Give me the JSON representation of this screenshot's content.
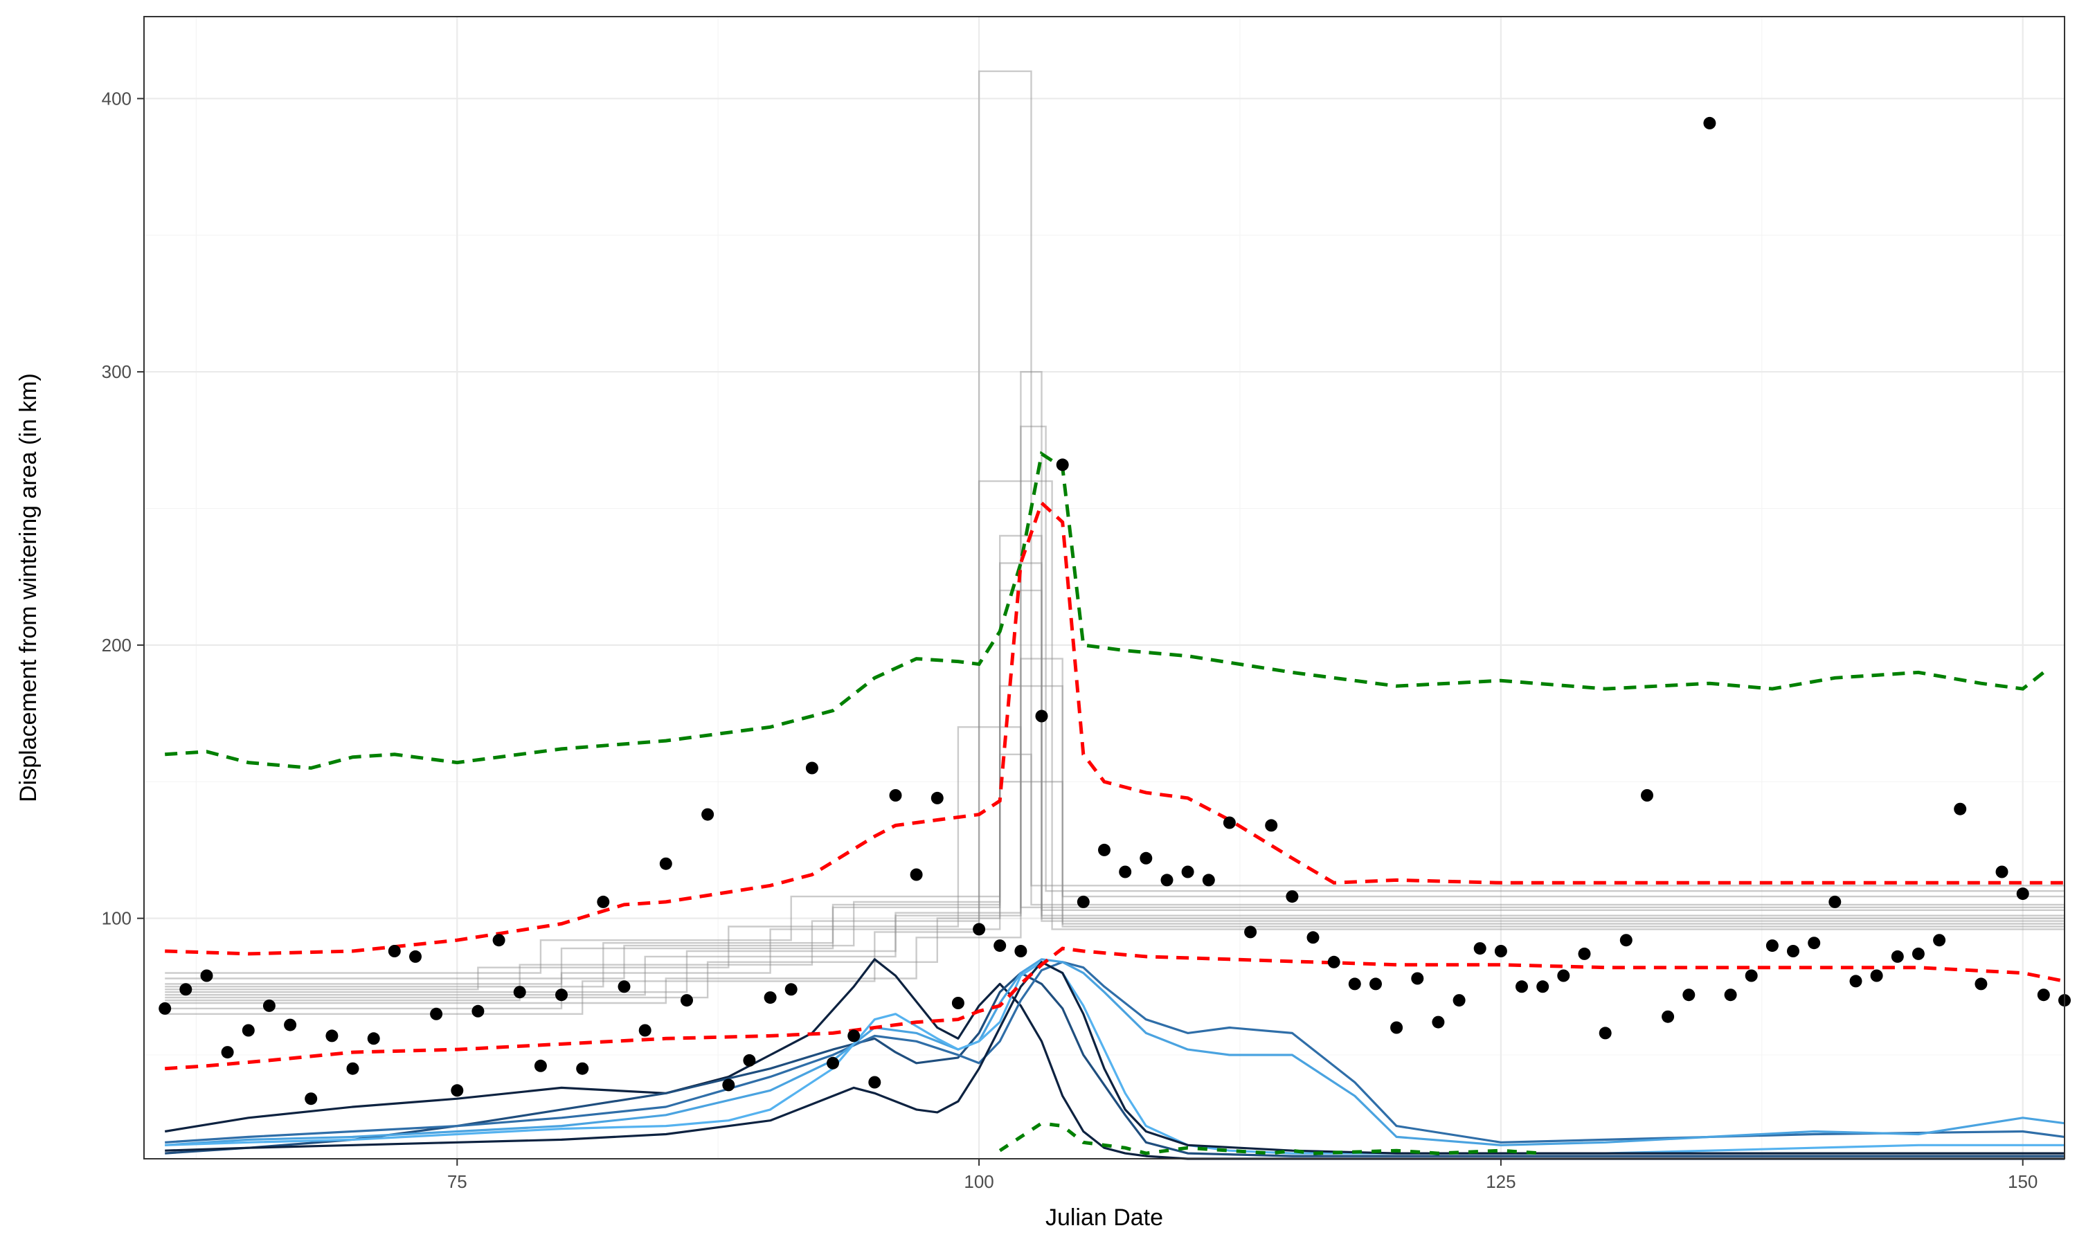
{
  "chart_data": {
    "type": "scatter",
    "xlabel": "Julian Date",
    "ylabel": "Displacement from wintering area (in km)",
    "xlim": [
      60,
      152
    ],
    "ylim": [
      12,
      430
    ],
    "x_ticks": [
      75,
      100,
      125,
      150
    ],
    "y_ticks": [
      100,
      200,
      300,
      400
    ],
    "x_tick_labels": [
      "75",
      "100",
      "125",
      "150"
    ],
    "y_tick_labels": [
      "100",
      "200",
      "300",
      "400"
    ],
    "grid": true,
    "legend": "none",
    "colors": {
      "points": "#000000",
      "upper_band": "#008000",
      "quantile_band": "#ff0000",
      "step_lines": "#8c8c8c",
      "density_curves": [
        "#0d2240",
        "#1f4e7e",
        "#2f6ea8",
        "#4aa3e0",
        "#55b2ef"
      ]
    },
    "points": [
      [
        61,
        67
      ],
      [
        62,
        74
      ],
      [
        63,
        79
      ],
      [
        64,
        51
      ],
      [
        65,
        59
      ],
      [
        66,
        68
      ],
      [
        67,
        61
      ],
      [
        68,
        34
      ],
      [
        69,
        57
      ],
      [
        70,
        45
      ],
      [
        71,
        56
      ],
      [
        72,
        88
      ],
      [
        73,
        86
      ],
      [
        74,
        65
      ],
      [
        75,
        37
      ],
      [
        76,
        66
      ],
      [
        77,
        92
      ],
      [
        78,
        73
      ],
      [
        79,
        46
      ],
      [
        80,
        72
      ],
      [
        81,
        45
      ],
      [
        82,
        106
      ],
      [
        83,
        75
      ],
      [
        84,
        59
      ],
      [
        85,
        120
      ],
      [
        86,
        70
      ],
      [
        87,
        138
      ],
      [
        88,
        39
      ],
      [
        89,
        48
      ],
      [
        90,
        71
      ],
      [
        91,
        74
      ],
      [
        92,
        155
      ],
      [
        93,
        47
      ],
      [
        94,
        57
      ],
      [
        95,
        40
      ],
      [
        96,
        145
      ],
      [
        97,
        116
      ],
      [
        98,
        144
      ],
      [
        99,
        69
      ],
      [
        100,
        96
      ],
      [
        101,
        90
      ],
      [
        102,
        88
      ],
      [
        103,
        174
      ],
      [
        104,
        266
      ],
      [
        105,
        106
      ],
      [
        106,
        125
      ],
      [
        107,
        117
      ],
      [
        108,
        122
      ],
      [
        109,
        114
      ],
      [
        110,
        117
      ],
      [
        111,
        114
      ],
      [
        112,
        135
      ],
      [
        113,
        95
      ],
      [
        114,
        134
      ],
      [
        115,
        108
      ],
      [
        116,
        93
      ],
      [
        117,
        84
      ],
      [
        118,
        76
      ],
      [
        119,
        76
      ],
      [
        120,
        60
      ],
      [
        121,
        78
      ],
      [
        122,
        62
      ],
      [
        123,
        70
      ],
      [
        124,
        89
      ],
      [
        125,
        88
      ],
      [
        126,
        75
      ],
      [
        127,
        75
      ],
      [
        128,
        79
      ],
      [
        129,
        87
      ],
      [
        130,
        58
      ],
      [
        131,
        92
      ],
      [
        132,
        145
      ],
      [
        133,
        64
      ],
      [
        134,
        72
      ],
      [
        135,
        391
      ],
      [
        136,
        72
      ],
      [
        137,
        79
      ],
      [
        138,
        90
      ],
      [
        139,
        88
      ],
      [
        140,
        91
      ],
      [
        141,
        106
      ],
      [
        142,
        77
      ],
      [
        143,
        79
      ],
      [
        144,
        86
      ],
      [
        145,
        87
      ],
      [
        146,
        92
      ],
      [
        147,
        140
      ],
      [
        148,
        76
      ],
      [
        149,
        117
      ],
      [
        150,
        109
      ],
      [
        151,
        72
      ],
      [
        152,
        70
      ]
    ],
    "upper_band": {
      "x": [
        61,
        63,
        65,
        68,
        70,
        72,
        75,
        80,
        85,
        90,
        93,
        95,
        97,
        99,
        100,
        101,
        102,
        103,
        104,
        105,
        107,
        110,
        115,
        120,
        125,
        130,
        135,
        138,
        141,
        145,
        148,
        150,
        151
      ],
      "y": [
        160,
        161,
        157,
        155,
        159,
        160,
        157,
        162,
        165,
        170,
        176,
        188,
        195,
        194,
        193,
        205,
        230,
        270,
        265,
        200,
        198,
        196,
        190,
        185,
        187,
        184,
        186,
        184,
        188,
        190,
        186,
        184,
        190
      ]
    },
    "green_bottom_band": {
      "x": [
        101,
        102,
        103,
        104,
        105,
        106,
        107,
        108,
        109,
        110,
        112,
        114,
        115,
        116,
        120,
        122,
        125,
        127
      ],
      "y": [
        15,
        20,
        25,
        24,
        18,
        17,
        16,
        14,
        15,
        16,
        15,
        14,
        15,
        14,
        15,
        14,
        15,
        14
      ]
    },
    "quantile_upper": {
      "x": [
        61,
        65,
        70,
        75,
        80,
        83,
        85,
        90,
        92,
        95,
        96,
        98,
        100,
        101,
        102,
        103,
        104,
        105,
        106,
        108,
        110,
        112,
        115,
        117,
        120,
        125,
        130,
        140,
        150,
        152
      ],
      "y": [
        88,
        87,
        88,
        92,
        98,
        105,
        106,
        112,
        116,
        130,
        134,
        136,
        138,
        143,
        230,
        252,
        245,
        160,
        150,
        146,
        144,
        136,
        122,
        113,
        114,
        113,
        113,
        113,
        113,
        113
      ]
    },
    "quantile_lower": {
      "x": [
        61,
        63,
        66,
        70,
        75,
        80,
        85,
        90,
        93,
        95,
        97,
        99,
        100,
        101,
        102,
        103,
        104,
        105,
        108,
        112,
        116,
        120,
        125,
        130,
        140,
        145,
        150,
        152
      ],
      "y": [
        45,
        46,
        48,
        51,
        52,
        54,
        56,
        57,
        58,
        60,
        62,
        63,
        66,
        68,
        76,
        83,
        89,
        88,
        86,
        85,
        84,
        83,
        83,
        82,
        82,
        82,
        80,
        77
      ]
    },
    "step_lines": [
      {
        "x": [
          61,
          80,
          80,
          90,
          90,
          101,
          101,
          104,
          104,
          152
        ],
        "y": [
          67,
          67,
          80,
          80,
          96,
          96,
          150,
          150,
          108,
          108
        ]
      },
      {
        "x": [
          61,
          84,
          84,
          96,
          96,
          102,
          102,
          103.2,
          103.2,
          152
        ],
        "y": [
          72,
          72,
          86,
          86,
          102,
          102,
          280,
          280,
          110,
          110
        ]
      },
      {
        "x": [
          61,
          78,
          78,
          92,
          92,
          100,
          100,
          102.5,
          102.5,
          152
        ],
        "y": [
          70,
          70,
          83,
          83,
          99,
          99,
          410,
          410,
          105,
          105
        ]
      },
      {
        "x": [
          61,
          82,
          82,
          93,
          93,
          101,
          101,
          103,
          103,
          152
        ],
        "y": [
          75,
          75,
          91,
          91,
          104,
          104,
          240,
          240,
          101,
          101
        ]
      },
      {
        "x": [
          61,
          85,
          85,
          97,
          97,
          102,
          102,
          104,
          104,
          152
        ],
        "y": [
          69,
          69,
          78,
          78,
          93,
          93,
          195,
          195,
          98,
          98
        ]
      },
      {
        "x": [
          61,
          76,
          76,
          88,
          88,
          99,
          99,
          102,
          102,
          152
        ],
        "y": [
          74,
          74,
          82,
          82,
          97,
          97,
          170,
          170,
          104,
          104
        ]
      },
      {
        "x": [
          61,
          83,
          83,
          94,
          94,
          101,
          101,
          103,
          103,
          152
        ],
        "y": [
          78,
          78,
          90,
          90,
          106,
          106,
          220,
          220,
          100,
          100
        ]
      },
      {
        "x": [
          61,
          81,
          81,
          95,
          95,
          100,
          100,
          103.5,
          103.5,
          152
        ],
        "y": [
          65,
          65,
          77,
          77,
          95,
          95,
          260,
          260,
          96,
          96
        ]
      },
      {
        "x": [
          61,
          86,
          86,
          96,
          96,
          102,
          102,
          103,
          103,
          152
        ],
        "y": [
          73,
          73,
          88,
          88,
          101,
          101,
          300,
          300,
          103,
          103
        ]
      },
      {
        "x": [
          61,
          79,
          79,
          91,
          91,
          101,
          101,
          102.5,
          102.5,
          152
        ],
        "y": [
          80,
          80,
          92,
          92,
          108,
          108,
          160,
          160,
          112,
          112
        ]
      },
      {
        "x": [
          61,
          87,
          87,
          98,
          98,
          101,
          101,
          104,
          104,
          152
        ],
        "y": [
          71,
          71,
          84,
          84,
          100,
          100,
          185,
          185,
          97,
          97
        ]
      },
      {
        "x": [
          61,
          80,
          80,
          93,
          93,
          101,
          101,
          103,
          103,
          152
        ],
        "y": [
          76,
          76,
          89,
          89,
          105,
          105,
          230,
          230,
          99,
          99
        ]
      }
    ],
    "density_curves": [
      {
        "x": [
          61,
          65,
          70,
          75,
          80,
          85,
          88,
          90,
          92,
          94,
          95,
          96,
          98,
          99,
          100,
          101,
          102,
          103,
          104,
          105,
          106,
          107,
          108,
          110,
          115,
          120,
          130,
          140,
          150,
          152
        ],
        "y": [
          22,
          27,
          31,
          34,
          38,
          36,
          42,
          50,
          58,
          75,
          85,
          79,
          60,
          56,
          68,
          76,
          68,
          55,
          35,
          22,
          16,
          14,
          13,
          12,
          12,
          12,
          12,
          12,
          12,
          12
        ]
      },
      {
        "x": [
          61,
          65,
          70,
          75,
          80,
          85,
          90,
          93,
          95,
          96,
          97,
          99,
          100,
          101,
          102,
          103,
          104,
          105,
          107,
          108,
          110,
          115,
          120,
          125,
          130,
          140,
          150,
          152
        ],
        "y": [
          14,
          16,
          19,
          24,
          30,
          36,
          45,
          52,
          56,
          51,
          47,
          49,
          58,
          73,
          80,
          76,
          67,
          50,
          28,
          18,
          14,
          13,
          13,
          13,
          13,
          13,
          13,
          13
        ]
      },
      {
        "x": [
          61,
          65,
          70,
          75,
          80,
          85,
          90,
          93,
          95,
          97,
          99,
          100,
          101,
          102,
          103,
          104,
          105,
          106,
          108,
          110,
          112,
          115,
          118,
          120,
          125,
          130,
          140,
          150,
          152
        ],
        "y": [
          18,
          20,
          22,
          24,
          27,
          31,
          42,
          50,
          57,
          55,
          50,
          47,
          55,
          70,
          81,
          84,
          82,
          75,
          63,
          58,
          60,
          58,
          40,
          24,
          18,
          19,
          21,
          22,
          20
        ]
      },
      {
        "x": [
          61,
          65,
          70,
          75,
          80,
          85,
          90,
          93,
          95,
          97,
          99,
          100,
          101,
          102,
          103,
          104,
          105,
          106,
          108,
          110,
          112,
          115,
          118,
          120,
          125,
          130,
          135,
          140,
          145,
          150,
          152
        ],
        "y": [
          17,
          19,
          20,
          22,
          24,
          28,
          37,
          48,
          60,
          58,
          52,
          55,
          69,
          80,
          85,
          84,
          80,
          73,
          58,
          52,
          50,
          50,
          35,
          20,
          17,
          18,
          20,
          22,
          21,
          27,
          25
        ]
      },
      {
        "x": [
          61,
          65,
          70,
          75,
          80,
          85,
          88,
          90,
          93,
          95,
          96,
          98,
          99,
          100,
          101,
          102,
          103,
          104,
          105,
          106,
          107,
          108,
          110,
          112,
          115,
          118,
          120,
          125,
          130,
          135,
          140,
          145,
          150,
          152
        ],
        "y": [
          17,
          18,
          19,
          21,
          23,
          24,
          26,
          30,
          45,
          63,
          65,
          56,
          52,
          55,
          62,
          79,
          84,
          80,
          68,
          52,
          36,
          24,
          17,
          15,
          14,
          14,
          14,
          14,
          14,
          15,
          16,
          17,
          17,
          17
        ]
      },
      {
        "x": [
          61,
          65,
          70,
          75,
          80,
          85,
          90,
          92,
          94,
          95,
          96,
          97,
          98,
          99,
          100,
          101,
          102,
          103,
          104,
          105,
          106,
          107,
          108,
          110,
          115,
          120,
          130,
          140,
          150,
          152
        ],
        "y": [
          15,
          16,
          17,
          18,
          19,
          21,
          26,
          32,
          38,
          36,
          33,
          30,
          29,
          33,
          45,
          60,
          75,
          84,
          80,
          65,
          45,
          30,
          22,
          17,
          15,
          14,
          14,
          14,
          14,
          14
        ]
      }
    ]
  }
}
